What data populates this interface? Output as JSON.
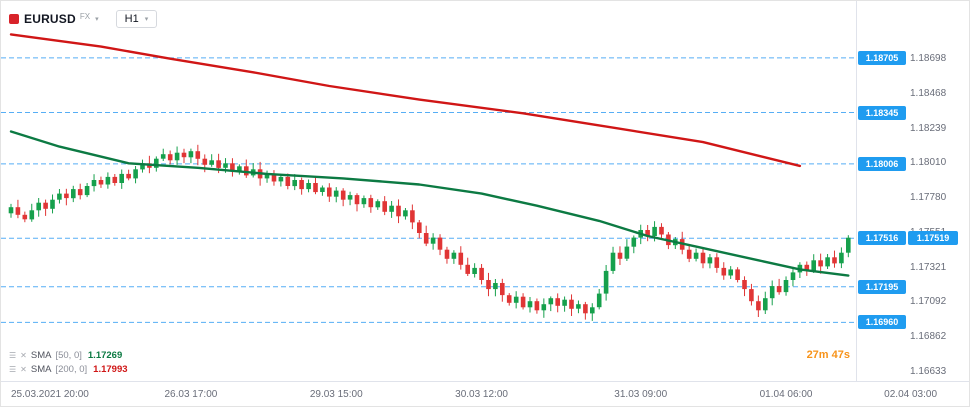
{
  "header": {
    "symbol": "EURUSD",
    "market": "FX",
    "timeframe": "H1"
  },
  "legend": [
    {
      "name": "SMA",
      "params": "[50, 0]",
      "value": "1.17269",
      "color": "#0c7a43"
    },
    {
      "name": "SMA",
      "params": "[200, 0]",
      "value": "1.17993",
      "color": "#d01616"
    }
  ],
  "countdown": "27m 47s",
  "colors": {
    "candle_up": "#16a04c",
    "candle_down": "#e03535",
    "sma50": "#0c7a43",
    "sma200": "#d01616",
    "level_line": "#56aef5",
    "label_bg": "#1f9cf0",
    "countdown": "#f7931a"
  },
  "chart_data": {
    "type": "candlestick",
    "symbol": "EURUSD",
    "interval": "H1",
    "price_top": 1.18698,
    "price_bottom": 1.16633,
    "price_ticks": [
      "1.18698",
      "1.18468",
      "1.18239",
      "1.18010",
      "1.17780",
      "1.17551",
      "1.17321",
      "1.17092",
      "1.16862",
      "1.16633"
    ],
    "levels": [
      1.18705,
      1.18345,
      1.18006,
      1.17516,
      1.17195,
      1.1696
    ],
    "current_price": 1.17519,
    "time_ticks": [
      {
        "label": "25.03.2021 20:00",
        "i": 0,
        "align": "left"
      },
      {
        "label": "26.03 17:00",
        "i": 26
      },
      {
        "label": "29.03 15:00",
        "i": 47
      },
      {
        "label": "30.03 12:00",
        "i": 68
      },
      {
        "label": "31.03 09:00",
        "i": 91
      },
      {
        "label": "01.04 06:00",
        "i": 112
      },
      {
        "label": "02.04 03:00",
        "i": 130
      }
    ],
    "closes": [
      1.1772,
      1.1767,
      1.1764,
      1.177,
      1.1775,
      1.1771,
      1.1777,
      1.1781,
      1.1778,
      1.1784,
      1.178,
      1.1786,
      1.179,
      1.1787,
      1.1792,
      1.1788,
      1.1794,
      1.1791,
      1.1797,
      1.1801,
      1.1798,
      1.1804,
      1.1807,
      1.1803,
      1.1808,
      1.1805,
      1.1809,
      1.1804,
      1.18,
      1.1803,
      1.1798,
      1.1801,
      1.1796,
      1.1799,
      1.1793,
      1.1797,
      1.1791,
      1.1794,
      1.1789,
      1.1792,
      1.1786,
      1.179,
      1.1784,
      1.1788,
      1.1782,
      1.1785,
      1.1779,
      1.1783,
      1.1777,
      1.178,
      1.1774,
      1.1778,
      1.1772,
      1.1776,
      1.1769,
      1.1773,
      1.1766,
      1.177,
      1.1762,
      1.1755,
      1.1748,
      1.1752,
      1.1744,
      1.1738,
      1.1742,
      1.1734,
      1.1728,
      1.1732,
      1.1724,
      1.1718,
      1.1722,
      1.1714,
      1.1709,
      1.1713,
      1.1706,
      1.171,
      1.1704,
      1.1708,
      1.1712,
      1.1707,
      1.1711,
      1.1705,
      1.1708,
      1.1702,
      1.1706,
      1.1715,
      1.173,
      1.1742,
      1.1738,
      1.1746,
      1.1752,
      1.1757,
      1.1753,
      1.1759,
      1.1754,
      1.1747,
      1.1751,
      1.1744,
      1.1738,
      1.1742,
      1.1735,
      1.1739,
      1.1732,
      1.1727,
      1.1731,
      1.1724,
      1.1718,
      1.171,
      1.1704,
      1.1712,
      1.172,
      1.1716,
      1.1724,
      1.1729,
      1.1734,
      1.173,
      1.1737,
      1.1733,
      1.1739,
      1.1735,
      1.1742,
      1.17519
    ],
    "sma50_points": [
      [
        0,
        1.1822
      ],
      [
        7,
        1.1812
      ],
      [
        17,
        1.1801
      ],
      [
        27,
        1.1798
      ],
      [
        37,
        1.1794
      ],
      [
        48,
        1.1791
      ],
      [
        59,
        1.1787
      ],
      [
        68,
        1.1781
      ],
      [
        76,
        1.1773
      ],
      [
        85,
        1.1763
      ],
      [
        92,
        1.1753
      ],
      [
        99,
        1.1746
      ],
      [
        108,
        1.1737
      ],
      [
        114,
        1.1731
      ],
      [
        121,
        1.17269
      ]
    ],
    "sma200_points": [
      [
        0,
        1.1886
      ],
      [
        13,
        1.1878
      ],
      [
        23,
        1.187
      ],
      [
        35,
        1.1861
      ],
      [
        46,
        1.1852
      ],
      [
        59,
        1.1843
      ],
      [
        74,
        1.1834
      ],
      [
        85,
        1.1826
      ],
      [
        100,
        1.1815
      ],
      [
        114,
        1.17993
      ]
    ]
  }
}
